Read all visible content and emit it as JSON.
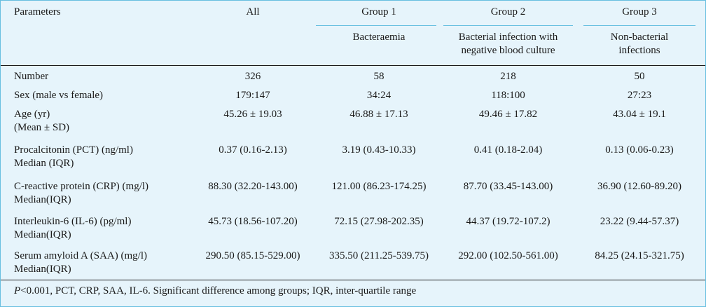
{
  "header": {
    "parameters": "Parameters",
    "all": "All",
    "groups": [
      {
        "title": "Group 1",
        "subtitle_lines": [
          "Bacteraemia"
        ]
      },
      {
        "title": "Group 2",
        "subtitle_lines": [
          "Bacterial infection with",
          "negative blood culture"
        ]
      },
      {
        "title": "Group 3",
        "subtitle_lines": [
          "Non-bacterial",
          "infections"
        ]
      }
    ]
  },
  "rows": [
    {
      "label_lines": [
        "Number"
      ],
      "values": [
        "326",
        "58",
        "218",
        "50"
      ]
    },
    {
      "label_lines": [
        "Sex (male vs female)"
      ],
      "values": [
        "179:147",
        "34:24",
        "118:100",
        "27:23"
      ]
    },
    {
      "label_lines": [
        "Age (yr)",
        "(Mean ± SD)"
      ],
      "values": [
        "45.26 ± 19.03",
        "46.88 ± 17.13",
        "49.46 ± 17.82",
        "43.04 ± 19.1"
      ]
    },
    {
      "label_lines": [
        "Procalcitonin (PCT) (ng/ml)",
        "Median (IQR)"
      ],
      "values": [
        "0.37 (0.16-2.13)",
        "3.19 (0.43-10.33)",
        "0.41 (0.18-2.04)",
        "0.13 (0.06-0.23)"
      ]
    },
    {
      "label_lines": [
        "C-reactive protein (CRP) (mg/l)",
        "Median(IQR)"
      ],
      "values": [
        "88.30 (32.20-143.00)",
        "121.00 (86.23-174.25)",
        "87.70 (33.45-143.00)",
        "36.90 (12.60-89.20)"
      ]
    },
    {
      "label_lines": [
        "Interleukin-6 (IL-6) (pg/ml)",
        "Median(IQR)"
      ],
      "values": [
        "45.73 (18.56-107.20)",
        "72.15 (27.98-202.35)",
        "44.37 (19.72-107.2)",
        "23.22 (9.44-57.37)"
      ]
    },
    {
      "label_lines": [
        "Serum amyloid A (SAA) (mg/l)",
        "Median(IQR)"
      ],
      "values": [
        "290.50 (85.15-529.00)",
        "335.50 (211.25-539.75)",
        "292.00 (102.50-561.00)",
        "84.25 (24.15-321.75)"
      ]
    }
  ],
  "footnote": {
    "italic_part": "P",
    "rest": "<0.001, PCT, CRP, SAA, IL-6. Significant difference among groups; IQR, inter-quartile range"
  },
  "colors": {
    "panel_bg": "#e6f4fb",
    "panel_border": "#67bfe0",
    "rules": "#1a1a1a"
  }
}
